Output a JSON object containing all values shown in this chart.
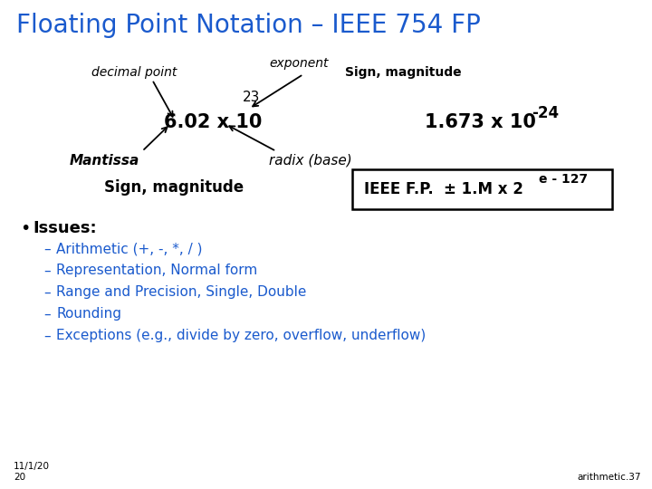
{
  "title": "Floating Point Notation – IEEE 754 FP",
  "title_color": "#1a5acd",
  "title_fontsize": 20,
  "bg_color": "#ffffff",
  "label_decimal_point": "decimal point",
  "label_exponent": "exponent",
  "label_sign_mag_top": "Sign, magnitude",
  "label_23": "23",
  "label_main_expr": "6.02 x 10",
  "label_right_expr_base": "1.673 x 10",
  "label_right_expr_exp": "-24",
  "label_mantissa": "Mantissa",
  "label_radix": "radix (base)",
  "label_sign_mag_bottom": "Sign, magnitude",
  "box_text_left": "IEEE F.P.",
  "box_text_mid": "± 1.M x 2",
  "box_text_exp": "e - 127",
  "bullet": "Issues:",
  "sub_items": [
    "Arithmetic (+, -, *, / )",
    "Representation, Normal form",
    "Range and Precision, Single, Double",
    "Rounding",
    "Exceptions (e.g., divide by zero, overflow, underflow)"
  ],
  "footnote_left": "11/1/20\n20",
  "footnote_right": "arithmetic.37",
  "text_color": "#000000",
  "sub_color": "#1a5acd"
}
